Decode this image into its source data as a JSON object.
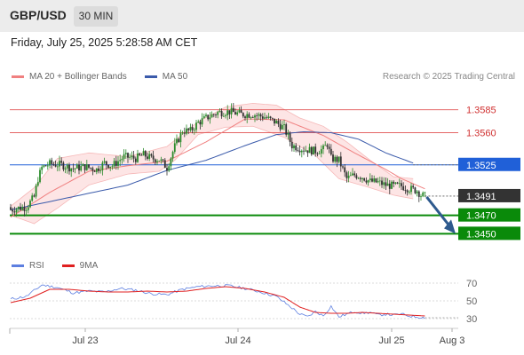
{
  "header": {
    "symbol": "GBP/USD",
    "timeframe": "30 MIN",
    "datetime": "Friday, July 25, 2025 5:28:58 AM CET"
  },
  "price_legend": {
    "ma20_label": "MA 20 + Bollinger Bands",
    "ma50_label": "MA 50",
    "credit": "Research © 2025 Trading Central"
  },
  "rsi_legend": {
    "rsi_label": "RSI",
    "ma_label": "9MA"
  },
  "colors": {
    "bollinger": "#f08080",
    "bollinger_fill": "#fde0e0",
    "ma50": "#3b5bab",
    "ma50_level": "#2060d8",
    "support": "#0a8a0a",
    "candle_up": "#2a8a2a",
    "candle_down": "#303030",
    "arrow": "#2e5a8e",
    "rsi": "#5d7fe0",
    "rsi_ma": "#e02020"
  },
  "chart_data": [
    {
      "type": "candlestick",
      "title": "GBP/USD 30 MIN",
      "x_axis": {
        "tick_labels": [
          "Jul 23",
          "Jul 24",
          "Jul 25",
          "Aug 3"
        ]
      },
      "ylim": [
        1.3432,
        1.3604
      ],
      "levels": [
        {
          "label": "1.3585",
          "value": 1.3585,
          "style": "resistance",
          "color": "#e05050"
        },
        {
          "label": "1.3560",
          "value": 1.356,
          "style": "resistance",
          "color": "#e05050"
        },
        {
          "label": "1.3525",
          "value": 1.3525,
          "style": "pivot",
          "color": "#2060d8"
        },
        {
          "label": "1.3491",
          "value": 1.3491,
          "style": "last_price",
          "color": "#333333"
        },
        {
          "label": "1.3470",
          "value": 1.347,
          "style": "support",
          "color": "#0a8a0a"
        },
        {
          "label": "1.3450",
          "value": 1.345,
          "style": "support",
          "color": "#0a8a0a"
        }
      ],
      "arrow": {
        "direction": "down",
        "from": 1.3492,
        "to": 1.345
      },
      "close_path": [
        [
          0,
          1.3476
        ],
        [
          4,
          1.3478
        ],
        [
          8,
          1.3479
        ],
        [
          12,
          1.349
        ],
        [
          14,
          1.351
        ],
        [
          16,
          1.3522
        ],
        [
          20,
          1.3526
        ],
        [
          26,
          1.3525
        ],
        [
          32,
          1.3521
        ],
        [
          38,
          1.3523
        ],
        [
          44,
          1.352
        ],
        [
          48,
          1.3527
        ],
        [
          52,
          1.3524
        ],
        [
          58,
          1.3534
        ],
        [
          64,
          1.3532
        ],
        [
          68,
          1.3536
        ],
        [
          72,
          1.3532
        ],
        [
          76,
          1.3531
        ],
        [
          80,
          1.3522
        ],
        [
          84,
          1.3545
        ],
        [
          88,
          1.3562
        ],
        [
          92,
          1.3562
        ],
        [
          96,
          1.3571
        ],
        [
          100,
          1.3576
        ],
        [
          106,
          1.3582
        ],
        [
          112,
          1.3583
        ],
        [
          118,
          1.358
        ],
        [
          124,
          1.358
        ],
        [
          130,
          1.3577
        ],
        [
          136,
          1.3571
        ],
        [
          140,
          1.3565
        ],
        [
          144,
          1.3546
        ],
        [
          150,
          1.3542
        ],
        [
          156,
          1.354
        ],
        [
          160,
          1.3542
        ],
        [
          162,
          1.3548
        ],
        [
          164,
          1.3532
        ],
        [
          168,
          1.353
        ],
        [
          172,
          1.351
        ],
        [
          176,
          1.3514
        ],
        [
          180,
          1.3512
        ],
        [
          184,
          1.3507
        ],
        [
          188,
          1.3506
        ],
        [
          192,
          1.3503
        ],
        [
          196,
          1.3502
        ],
        [
          200,
          1.3502
        ],
        [
          204,
          1.3499
        ],
        [
          208,
          1.3497
        ],
        [
          210,
          1.3492
        ],
        [
          212,
          1.3491
        ]
      ],
      "ma20": [
        [
          0,
          1.3468
        ],
        [
          20,
          1.3495
        ],
        [
          40,
          1.3518
        ],
        [
          60,
          1.3524
        ],
        [
          80,
          1.3529
        ],
        [
          100,
          1.355
        ],
        [
          120,
          1.3575
        ],
        [
          140,
          1.3574
        ],
        [
          160,
          1.3557
        ],
        [
          176,
          1.3538
        ],
        [
          192,
          1.352
        ],
        [
          200,
          1.351
        ],
        [
          212,
          1.3499
        ]
      ],
      "bollinger_upper": [
        [
          0,
          1.348
        ],
        [
          12,
          1.35
        ],
        [
          24,
          1.3532
        ],
        [
          40,
          1.3538
        ],
        [
          60,
          1.3534
        ],
        [
          80,
          1.3545
        ],
        [
          96,
          1.3572
        ],
        [
          110,
          1.3588
        ],
        [
          124,
          1.3592
        ],
        [
          136,
          1.359
        ],
        [
          148,
          1.3576
        ],
        [
          160,
          1.3567
        ],
        [
          172,
          1.355
        ],
        [
          184,
          1.353
        ],
        [
          196,
          1.3512
        ],
        [
          206,
          1.351
        ]
      ],
      "bollinger_lower": [
        [
          0,
          1.347
        ],
        [
          12,
          1.3461
        ],
        [
          24,
          1.3478
        ],
        [
          40,
          1.3503
        ],
        [
          60,
          1.3515
        ],
        [
          76,
          1.3518
        ],
        [
          84,
          1.353
        ],
        [
          96,
          1.3558
        ],
        [
          110,
          1.3566
        ],
        [
          124,
          1.3567
        ],
        [
          140,
          1.3555
        ],
        [
          156,
          1.3535
        ],
        [
          168,
          1.351
        ],
        [
          184,
          1.35
        ],
        [
          196,
          1.3492
        ],
        [
          206,
          1.3488
        ]
      ],
      "ma50": [
        [
          0,
          1.3476
        ],
        [
          20,
          1.3485
        ],
        [
          40,
          1.3494
        ],
        [
          60,
          1.3503
        ],
        [
          80,
          1.3519
        ],
        [
          100,
          1.353
        ],
        [
          120,
          1.3546
        ],
        [
          136,
          1.3558
        ],
        [
          150,
          1.3561
        ],
        [
          164,
          1.356
        ],
        [
          178,
          1.3553
        ],
        [
          192,
          1.3538
        ],
        [
          206,
          1.3527
        ]
      ],
      "ma50_projection": [
        [
          206,
          1.3527
        ],
        [
          220,
          1.3527
        ]
      ]
    },
    {
      "type": "line",
      "title": "RSI",
      "ylim": [
        25,
        75
      ],
      "y_ticks": [
        30,
        50,
        70
      ],
      "series": [
        {
          "name": "RSI",
          "values": [
            [
              0,
              52
            ],
            [
              8,
              55
            ],
            [
              16,
              68
            ],
            [
              24,
              65
            ],
            [
              32,
              59
            ],
            [
              40,
              61
            ],
            [
              48,
              60
            ],
            [
              56,
              64
            ],
            [
              64,
              62
            ],
            [
              72,
              58
            ],
            [
              80,
              57
            ],
            [
              88,
              63
            ],
            [
              96,
              66
            ],
            [
              104,
              67
            ],
            [
              112,
              67
            ],
            [
              120,
              64
            ],
            [
              128,
              60
            ],
            [
              136,
              55
            ],
            [
              144,
              42
            ],
            [
              148,
              35
            ],
            [
              152,
              32
            ],
            [
              156,
              38
            ],
            [
              160,
              33
            ],
            [
              164,
              44
            ],
            [
              168,
              32
            ],
            [
              172,
              35
            ],
            [
              176,
              38
            ],
            [
              180,
              36
            ],
            [
              184,
              37
            ],
            [
              188,
              34
            ],
            [
              192,
              35
            ],
            [
              196,
              34
            ],
            [
              200,
              35
            ],
            [
              204,
              33
            ],
            [
              208,
              32
            ],
            [
              212,
              31
            ]
          ]
        },
        {
          "name": "9MA",
          "values": [
            [
              0,
              48
            ],
            [
              10,
              53
            ],
            [
              20,
              63
            ],
            [
              30,
              63
            ],
            [
              40,
              61
            ],
            [
              50,
              60
            ],
            [
              60,
              60
            ],
            [
              70,
              61
            ],
            [
              80,
              60
            ],
            [
              90,
              61
            ],
            [
              100,
              64
            ],
            [
              110,
              66
            ],
            [
              120,
              64
            ],
            [
              130,
              60
            ],
            [
              140,
              54
            ],
            [
              148,
              43
            ],
            [
              156,
              37
            ],
            [
              164,
              36
            ],
            [
              172,
              36
            ],
            [
              180,
              37
            ],
            [
              188,
              36
            ],
            [
              196,
              35
            ],
            [
              204,
              34
            ],
            [
              212,
              33
            ]
          ]
        }
      ]
    }
  ]
}
